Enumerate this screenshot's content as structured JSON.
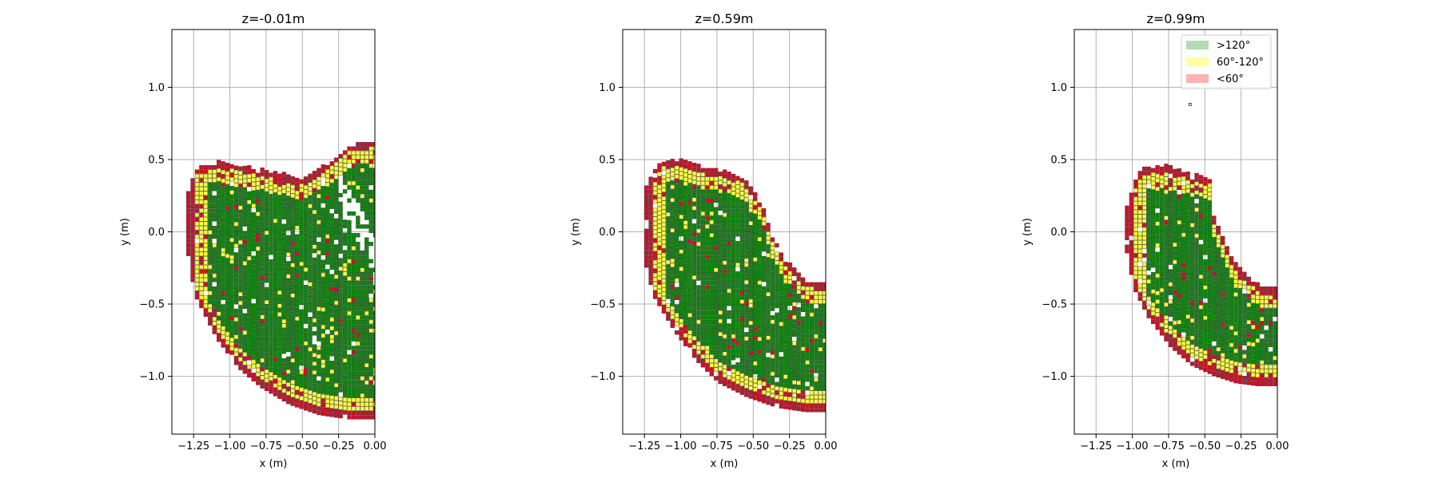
{
  "chart_data": [
    {
      "type": "heatmap",
      "title": "z=-0.01m",
      "xlabel": "x (m)",
      "ylabel": "y (m)",
      "xlim": [
        -1.4,
        0.0
      ],
      "ylim": [
        -1.4,
        1.4
      ],
      "xticks": [
        "−1.25",
        "−1.00",
        "−0.75",
        "−0.50",
        "−0.25",
        "0.00"
      ],
      "yticks": [
        "−1.0",
        "−0.5",
        "0.0",
        "0.5",
        "1.0"
      ],
      "grid": true,
      "region": {
        "outer_y_top": [
          [
            -1.3,
            0.25
          ],
          [
            -1.25,
            0.42
          ],
          [
            -1.1,
            0.48
          ],
          [
            -0.9,
            0.44
          ],
          [
            -0.7,
            0.4
          ],
          [
            -0.5,
            0.35
          ],
          [
            -0.35,
            0.45
          ],
          [
            -0.2,
            0.58
          ],
          [
            0.0,
            0.62
          ]
        ],
        "outer_y_bottom": [
          [
            -1.3,
            -0.2
          ],
          [
            -1.25,
            -0.45
          ],
          [
            -1.1,
            -0.75
          ],
          [
            -0.95,
            -0.95
          ],
          [
            -0.8,
            -1.08
          ],
          [
            -0.6,
            -1.2
          ],
          [
            -0.4,
            -1.27
          ],
          [
            -0.2,
            -1.3
          ],
          [
            0.0,
            -1.3
          ]
        ],
        "inner_notch": [
          [
            -0.25,
            0.1
          ],
          [
            -0.15,
            -0.05
          ],
          [
            -0.05,
            -0.25
          ],
          [
            0.0,
            -0.35
          ]
        ]
      },
      "show_legend": false
    },
    {
      "type": "heatmap",
      "title": "z=0.59m",
      "xlabel": "x (m)",
      "ylabel": "y (m)",
      "xlim": [
        -1.4,
        0.0
      ],
      "ylim": [
        -1.4,
        1.4
      ],
      "xticks": [
        "−1.25",
        "−1.00",
        "−0.75",
        "−0.50",
        "−0.25",
        "0.00"
      ],
      "yticks": [
        "−1.0",
        "−0.5",
        "0.0",
        "0.5",
        "1.0"
      ],
      "grid": true,
      "region": {
        "outer_y_top": [
          [
            -1.25,
            0.3
          ],
          [
            -1.15,
            0.48
          ],
          [
            -1.0,
            0.48
          ],
          [
            -0.8,
            0.42
          ],
          [
            -0.6,
            0.38
          ],
          [
            -0.45,
            0.2
          ],
          [
            -0.4,
            0.0
          ],
          [
            -0.3,
            -0.2
          ],
          [
            -0.15,
            -0.35
          ],
          [
            0.0,
            -0.38
          ]
        ],
        "outer_y_bottom": [
          [
            -1.25,
            -0.25
          ],
          [
            -1.2,
            -0.45
          ],
          [
            -1.05,
            -0.7
          ],
          [
            -0.9,
            -0.9
          ],
          [
            -0.75,
            -1.05
          ],
          [
            -0.55,
            -1.15
          ],
          [
            -0.35,
            -1.22
          ],
          [
            -0.15,
            -1.25
          ],
          [
            0.0,
            -1.25
          ]
        ]
      },
      "show_legend": false
    },
    {
      "type": "heatmap",
      "title": "z=0.99m",
      "xlabel": "x (m)",
      "ylabel": "y (m)",
      "xlim": [
        -1.4,
        0.0
      ],
      "ylim": [
        -1.4,
        1.4
      ],
      "xticks": [
        "−1.25",
        "−1.00",
        "−0.75",
        "−0.50",
        "−0.25",
        "0.00"
      ],
      "yticks": [
        "−1.0",
        "−0.5",
        "0.0",
        "0.5",
        "1.0"
      ],
      "grid": true,
      "region": {
        "outer_y_top": [
          [
            -1.05,
            0.2
          ],
          [
            -0.95,
            0.42
          ],
          [
            -0.8,
            0.45
          ],
          [
            -0.65,
            0.4
          ],
          [
            -0.45,
            0.35
          ],
          [
            -0.45,
            0.1
          ],
          [
            -0.35,
            -0.15
          ],
          [
            -0.25,
            -0.3
          ],
          [
            -0.1,
            -0.4
          ],
          [
            0.0,
            -0.4
          ]
        ],
        "outer_y_bottom": [
          [
            -1.05,
            -0.15
          ],
          [
            -1.0,
            -0.4
          ],
          [
            -0.9,
            -0.6
          ],
          [
            -0.75,
            -0.8
          ],
          [
            -0.6,
            -0.93
          ],
          [
            -0.45,
            -1.0
          ],
          [
            -0.3,
            -1.05
          ],
          [
            -0.15,
            -1.07
          ],
          [
            0.0,
            -1.07
          ]
        ],
        "outlier": [
          -0.61,
          0.89
        ]
      },
      "show_legend": true
    }
  ],
  "legend": {
    "placement": "top-right",
    "entries": [
      {
        "label": ">120°",
        "color": "#b3dcb3"
      },
      {
        "label": "60°-120°",
        "color": "#ffffa6"
      },
      {
        "label": "<60°",
        "color": "#ffb3b3"
      }
    ]
  },
  "colors": {
    "green": "#0a8a0a",
    "yellow": "#ffff44",
    "red": "#d0102a",
    "grid": "#b0b0b0"
  }
}
